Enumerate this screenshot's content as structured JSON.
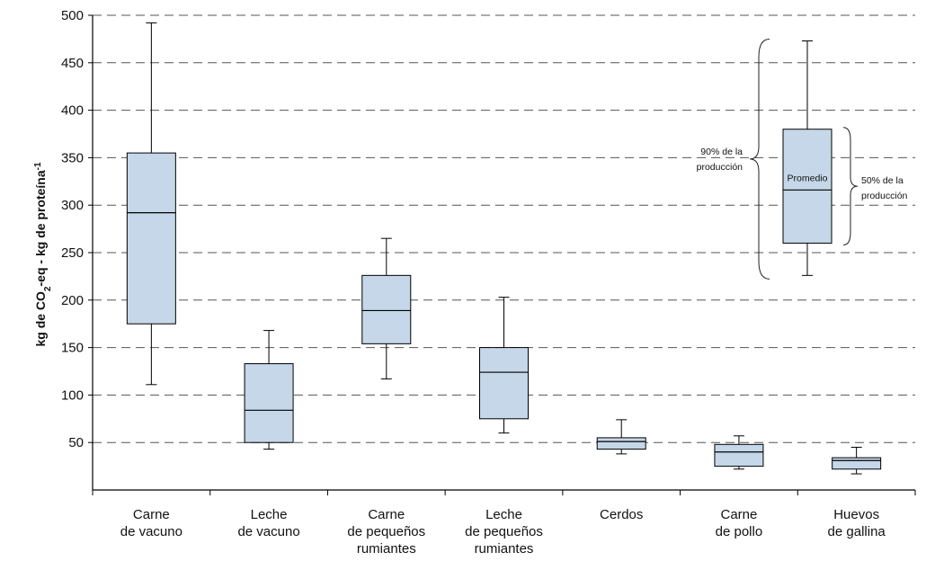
{
  "chart_data": {
    "type": "box",
    "ylabel": {
      "prefix": "kg de CO",
      "sub": "2",
      "middle": "-eq - kg de proteína",
      "sup": "-1"
    },
    "ylim": [
      0,
      500
    ],
    "yticks": [
      50,
      100,
      150,
      200,
      250,
      300,
      350,
      400,
      450,
      500
    ],
    "grid": "dashed-horizontal",
    "box_color": "#c5d7e8",
    "categories": [
      {
        "lines": [
          "Carne",
          "de vacuno"
        ],
        "whisker_low": 111,
        "q1": 175,
        "median": 292,
        "q3": 355,
        "whisker_high": 492
      },
      {
        "lines": [
          "Leche",
          "de vacuno"
        ],
        "whisker_low": 43,
        "q1": 50,
        "median": 84,
        "q3": 133,
        "whisker_high": 168
      },
      {
        "lines": [
          "Carne",
          "de pequeños",
          "rumiantes"
        ],
        "whisker_low": 117,
        "q1": 154,
        "median": 189,
        "q3": 226,
        "whisker_high": 265
      },
      {
        "lines": [
          "Leche",
          "de pequeños",
          "rumiantes"
        ],
        "whisker_low": 60,
        "q1": 75,
        "median": 124,
        "q3": 150,
        "whisker_high": 203
      },
      {
        "lines": [
          "Cerdos"
        ],
        "whisker_low": 38,
        "q1": 43,
        "median": 51,
        "q3": 55,
        "whisker_high": 74
      },
      {
        "lines": [
          "Carne",
          "de pollo"
        ],
        "whisker_low": 22,
        "q1": 25,
        "median": 40,
        "q3": 48,
        "whisker_high": 57
      },
      {
        "lines": [
          "Huevos",
          "de gallina"
        ],
        "whisker_low": 17,
        "q1": 22,
        "median": 31,
        "q3": 34,
        "whisker_high": 45
      }
    ],
    "legend": {
      "position": "top-right",
      "example": {
        "whisker_low": 226,
        "q1": 260,
        "median": 316,
        "q3": 380,
        "whisker_high": 473
      },
      "left_label": [
        "90% de la",
        "producción"
      ],
      "inner_label": "Promedio",
      "right_label": [
        "50% de la",
        "producción"
      ]
    }
  }
}
